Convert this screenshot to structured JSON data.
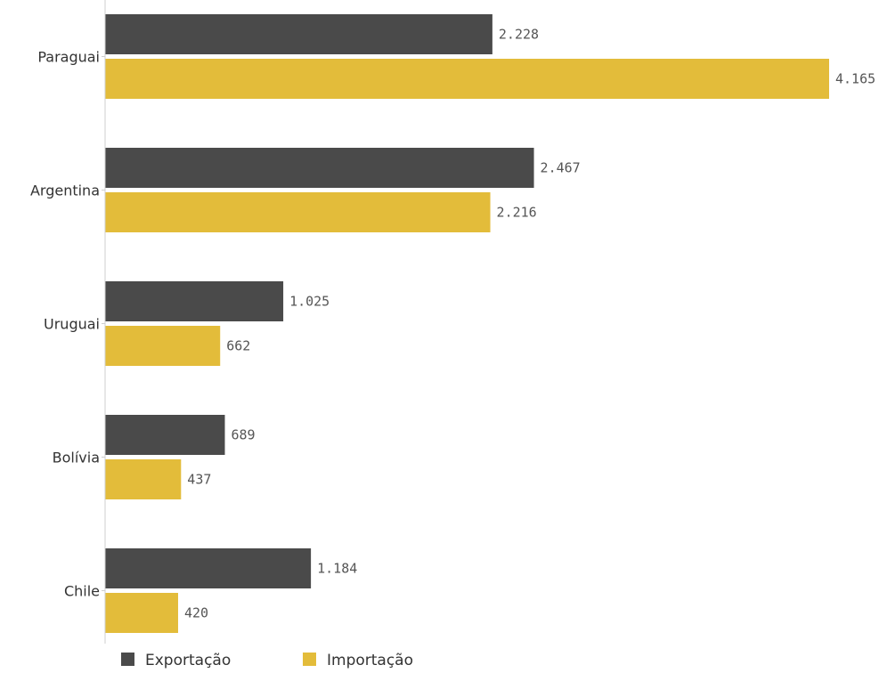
{
  "chart_data": {
    "type": "bar",
    "orientation": "horizontal",
    "categories": [
      "Paraguai",
      "Argentina",
      "Uruguai",
      "Bolívia",
      "Chile"
    ],
    "series": [
      {
        "name": "Exportação",
        "color": "#4a4a4a",
        "values": [
          2228,
          2467,
          1025,
          689,
          1184
        ],
        "labels": [
          "2.228",
          "2.467",
          "1.025",
          "689",
          "1.184"
        ]
      },
      {
        "name": "Importação",
        "color": "#e3bc3a",
        "values": [
          4165,
          2216,
          662,
          437,
          420
        ],
        "labels": [
          "4.165",
          "2.216",
          "662",
          "437",
          "420"
        ]
      }
    ],
    "xlim": [
      0,
      4165
    ],
    "grid": false,
    "legend_position": "bottom-left"
  }
}
